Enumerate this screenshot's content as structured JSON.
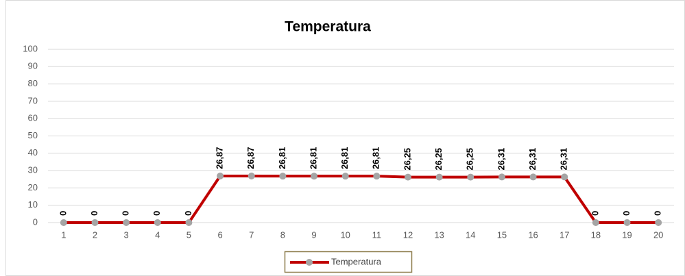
{
  "chart_data": {
    "type": "line",
    "title": "Temperatura",
    "categories": [
      "1",
      "2",
      "3",
      "4",
      "5",
      "6",
      "7",
      "8",
      "9",
      "10",
      "11",
      "12",
      "13",
      "14",
      "15",
      "16",
      "17",
      "18",
      "19",
      "20"
    ],
    "series": [
      {
        "name": "Temperatura",
        "color": "#c00000",
        "marker_color": "#a5a5a5",
        "values": [
          0,
          0,
          0,
          0,
          0,
          26.87,
          26.87,
          26.81,
          26.81,
          26.81,
          26.81,
          26.25,
          26.25,
          26.25,
          26.31,
          26.31,
          26.31,
          0,
          0,
          0
        ],
        "value_labels": [
          "0",
          "0",
          "0",
          "0",
          "0",
          "26,87",
          "26,87",
          "26,81",
          "26,81",
          "26,81",
          "26,81",
          "26,25",
          "26,25",
          "26,25",
          "26,31",
          "26,31",
          "26,31",
          "0",
          "0",
          "0"
        ]
      }
    ],
    "ylim": [
      0,
      100
    ],
    "yticks": [
      0,
      10,
      20,
      30,
      40,
      50,
      60,
      70,
      80,
      90,
      100
    ],
    "grid": true,
    "legend": "bottom"
  }
}
